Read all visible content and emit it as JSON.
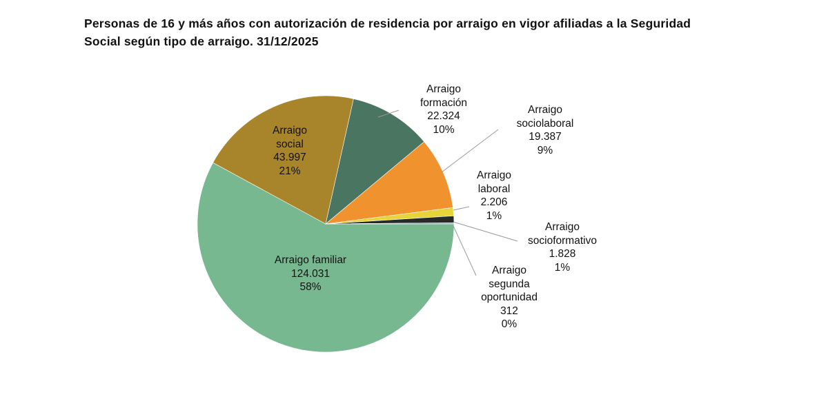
{
  "chart_data": {
    "type": "pie",
    "title": "Personas de 16 y más años con autorización de residencia por arraigo en vigor afiliadas a la Seguridad Social según tipo de arraigo. 31/12/2025",
    "categories": [
      "Arraigo familiar",
      "Arraigo social",
      "Arraigo formación",
      "Arraigo sociolaboral",
      "Arraigo laboral",
      "Arraigo socioformativo",
      "Arraigo segunda oportunidad"
    ],
    "values": [
      124031,
      43997,
      22324,
      19387,
      2206,
      1828,
      312
    ],
    "value_labels": [
      "124.031",
      "43.997",
      "22.324",
      "19.387",
      "2.206",
      "1.828",
      "312"
    ],
    "percent_labels": [
      "58%",
      "21%",
      "10%",
      "9%",
      "1%",
      "1%",
      "0%"
    ],
    "colors": [
      "#78b890",
      "#a8842a",
      "#4a7560",
      "#f0922e",
      "#e6d43a",
      "#262b27",
      "#8aa0a8"
    ]
  }
}
